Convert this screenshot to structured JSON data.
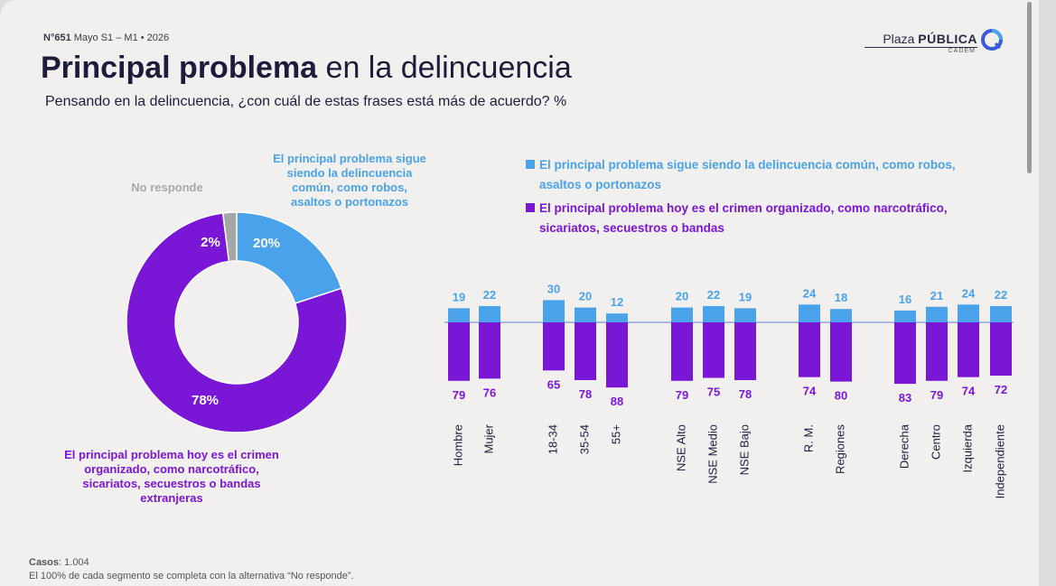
{
  "header": {
    "issue_number": "N°651",
    "issue_date": "Mayo S1 – M1 • 2026",
    "brand_light": "Plaza ",
    "brand_bold": "PÚBLICA",
    "brand_sub": "CADEM"
  },
  "title": {
    "bold": "Principal problema",
    "rest": " en la delincuencia"
  },
  "subtitle": "Pensando en la delincuencia, ¿con cuál de estas frases está más de acuerdo? %",
  "colors": {
    "blue": "#4aa2ea",
    "purple": "#7a16d6",
    "gray": "#a6a6a6",
    "axis": "#8fa6d8"
  },
  "chart_data": [
    {
      "type": "pie",
      "variant": "donut",
      "slices": [
        {
          "label": "El principal problema sigue siendo la delincuencia común, como robos, asaltos o portonazos",
          "value": 20,
          "value_label": "20%",
          "color": "#4aa2ea"
        },
        {
          "label": "El principal problema hoy es el crimen organizado, como narcotráfico, sicariatos, secuestros o bandas extranjeras",
          "value": 78,
          "value_label": "78%",
          "color": "#7a16d6"
        },
        {
          "label": "No responde",
          "value": 2,
          "value_label": "2%",
          "color": "#a6a6a6"
        }
      ],
      "annotations": {
        "blue": "El principal problema sigue siendo la delincuencia común, como robos, asaltos o portonazos",
        "gray": "No responde",
        "purple": "El principal problema hoy es el crimen organizado, como narcotráfico, sicariatos, secuestros o bandas extranjeras"
      }
    },
    {
      "type": "bar",
      "variant": "diverging",
      "legend": [
        {
          "text": "El principal problema sigue siendo la delincuencia común, como robos, asaltos o portonazos",
          "color": "#4aa2ea"
        },
        {
          "text": "El principal problema hoy es el crimen organizado, como narcotráfico, sicariatos, secuestros o bandas",
          "color": "#7a16d6"
        }
      ],
      "legend_position": "top",
      "categories": [
        "Hombre",
        "Mujer",
        "18-34",
        "35-54",
        "55+",
        "NSE Alto",
        "NSE Medio",
        "NSE Bajo",
        "R. M.",
        "Regiones",
        "Derecha",
        "Centro",
        "Izquierda",
        "Independiente"
      ],
      "groups": [
        2,
        3,
        3,
        2,
        4
      ],
      "series": [
        {
          "values": [
            19,
            22,
            30,
            20,
            12,
            20,
            22,
            19,
            24,
            18,
            16,
            21,
            24,
            22
          ],
          "color": "#4aa2ea",
          "direction": "up"
        },
        {
          "values": [
            79,
            76,
            65,
            78,
            88,
            79,
            75,
            78,
            74,
            80,
            83,
            79,
            74,
            72
          ],
          "color": "#7a16d6",
          "direction": "down"
        }
      ]
    }
  ],
  "footer": {
    "cases_label": "Casos",
    "cases_value": ": 1.004",
    "note": "El 100% de cada segmento se completa con la alternativa “No responde”."
  }
}
